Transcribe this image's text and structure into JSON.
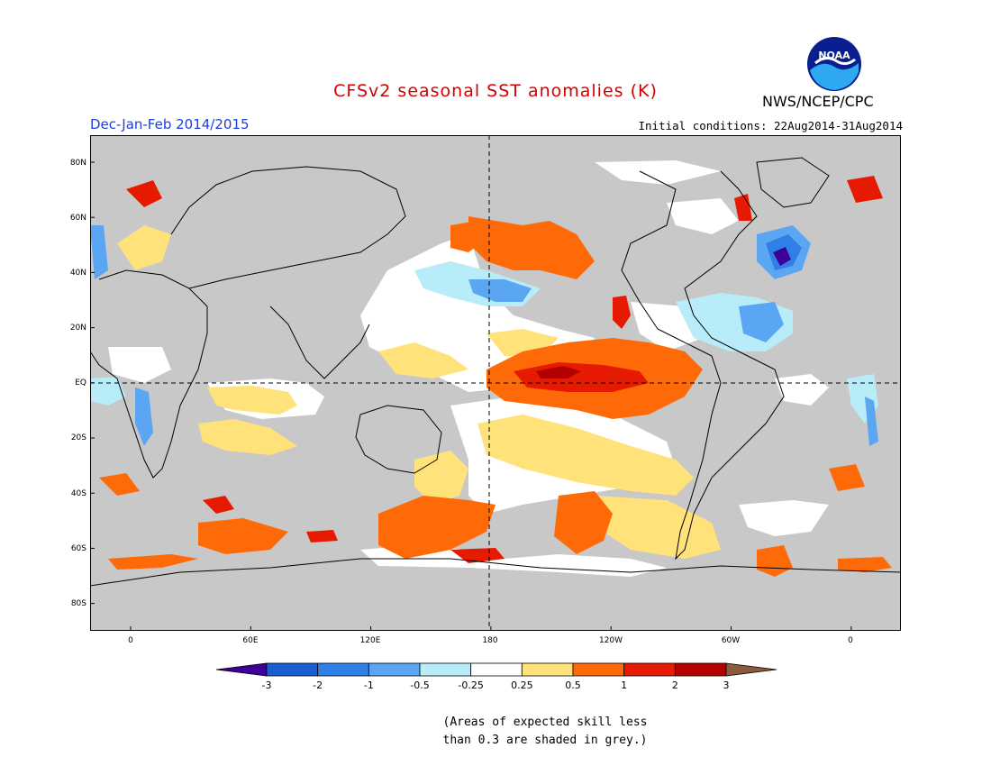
{
  "header": {
    "title": "CFSv2 seasonal SST anomalies (K)",
    "season": "Dec-Jan-Feb 2014/2015",
    "initial_conditions": "Initial conditions: 22Aug2014-31Aug2014",
    "agency": "NWS/NCEP/CPC",
    "logo_text": "NOAA"
  },
  "map": {
    "lat_labels": [
      "80N",
      "60N",
      "40N",
      "20N",
      "EQ",
      "20S",
      "40S",
      "60S",
      "80S"
    ],
    "lon_labels": [
      "0",
      "60E",
      "120E",
      "180",
      "120W",
      "60W",
      "0"
    ],
    "colors": {
      "land_low_skill": "#c8c8c8",
      "frame": "#000000"
    }
  },
  "colorbar": {
    "labels": [
      "-3",
      "-2",
      "-1",
      "-0.5",
      "-0.25",
      "0.25",
      "0.5",
      "1",
      "2",
      "3"
    ],
    "colors": [
      "#3d0099",
      "#1a5fd1",
      "#2f7fe6",
      "#5ba6f2",
      "#b8ecf8",
      "#ffffff",
      "#ffe27a",
      "#ff6a08",
      "#e61a00",
      "#b30000",
      "#8c5a3c"
    ]
  },
  "footnote": {
    "line1": "(Areas of expected skill less",
    "line2": "than 0.3 are shaded in grey.)"
  }
}
